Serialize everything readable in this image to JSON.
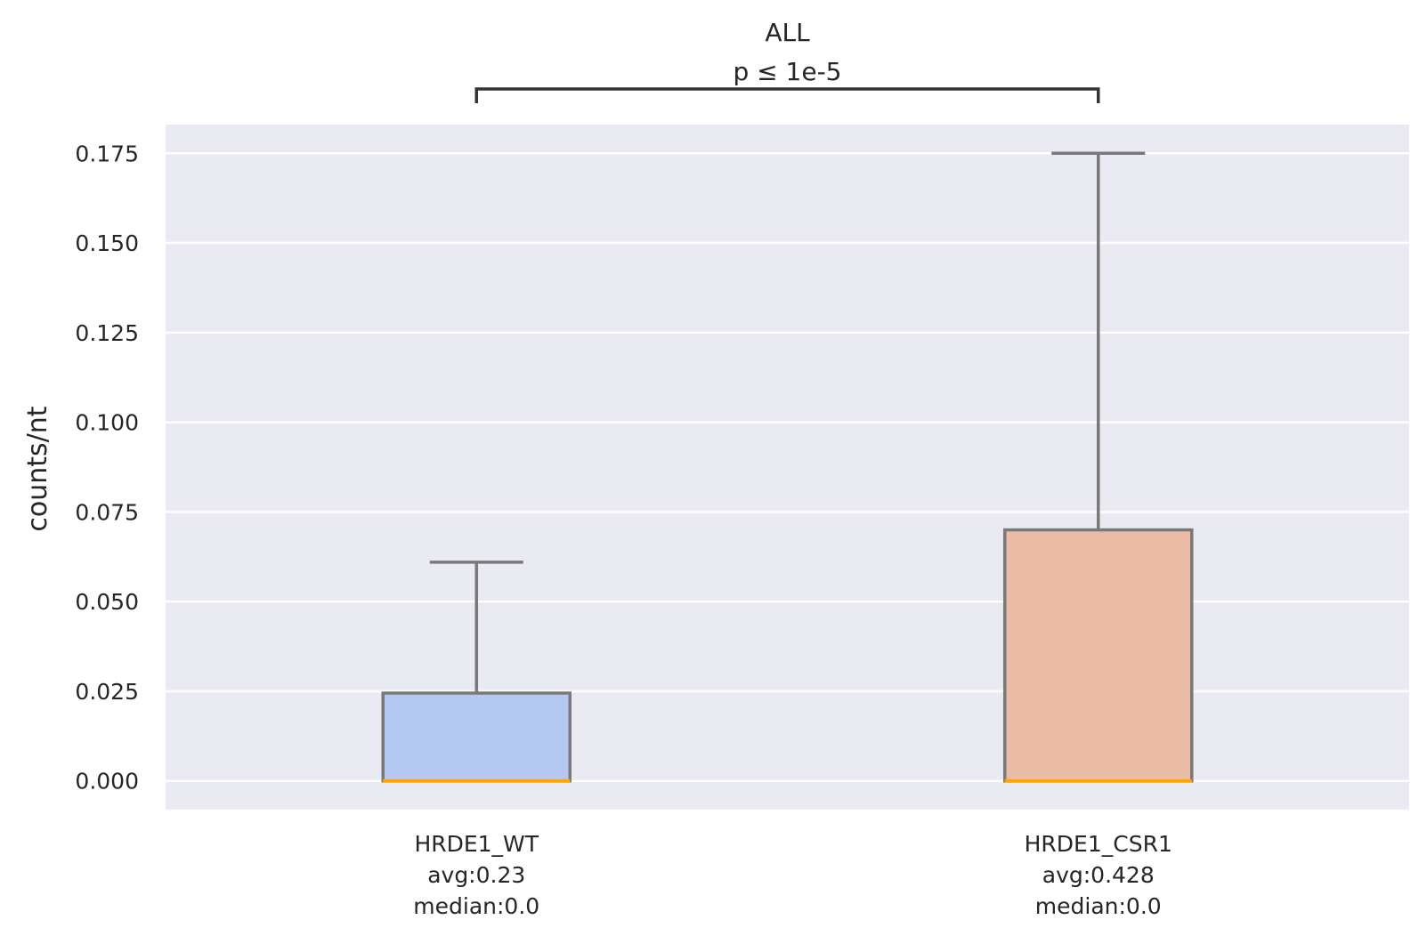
{
  "chart_data": {
    "type": "box",
    "ylabel": "counts/nt",
    "ylim": [
      -0.008,
      0.183
    ],
    "yticks": [
      0.0,
      0.025,
      0.05,
      0.075,
      0.1,
      0.125,
      0.15,
      0.175
    ],
    "ytick_labels": [
      "0.000",
      "0.025",
      "0.050",
      "0.075",
      "0.100",
      "0.125",
      "0.150",
      "0.175"
    ],
    "grid": true,
    "groups": [
      {
        "name": "HRDE1_WT",
        "label_lines": [
          "HRDE1_WT",
          "avg:0.23",
          "median:0.0"
        ],
        "q1": 0.0,
        "median": 0.0,
        "q3": 0.0245,
        "whisker_low": 0.0,
        "whisker_high": 0.061,
        "fill": "#b5c8f2"
      },
      {
        "name": "HRDE1_CSR1",
        "label_lines": [
          "HRDE1_CSR1",
          "avg:0.428",
          "median:0.0"
        ],
        "q1": 0.0,
        "median": 0.0,
        "q3": 0.07,
        "whisker_low": 0.0,
        "whisker_high": 0.175,
        "fill": "#eabba5"
      }
    ],
    "annotation": {
      "title": "ALL",
      "pvalue": "p ≤ 1e-5",
      "from": 0,
      "to": 1
    },
    "colors": {
      "plot_bg": "#eaeaf2",
      "grid": "#ffffff",
      "box_edge": "#797979",
      "median": "#ffa500",
      "bracket": "#333333"
    }
  }
}
